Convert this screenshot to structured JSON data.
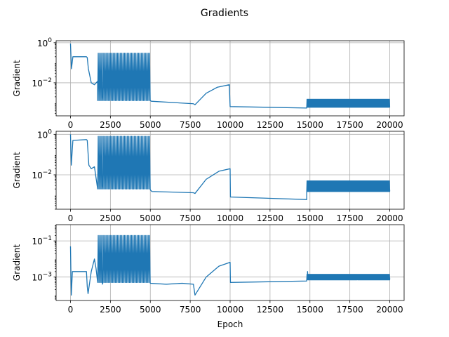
{
  "figure": {
    "suptitle": "Gradients"
  },
  "chart_data": [
    {
      "type": "line",
      "title": "",
      "xlabel": "",
      "ylabel": "Gradient",
      "yscale": "log",
      "xlim": [
        -900,
        20900
      ],
      "ylim_log10": [
        -3.65,
        0.1
      ],
      "xticks": [
        0,
        2500,
        5000,
        7500,
        10000,
        12500,
        15000,
        17500,
        20000
      ],
      "xtick_labels": [
        "0",
        "2500",
        "5000",
        "7500",
        "10000",
        "12500",
        "15000",
        "17500",
        "20000"
      ],
      "yticks_log10": [
        0,
        -2
      ],
      "ytick_labels": [
        "10^0",
        "10^-2"
      ],
      "grid": true,
      "color": "#1f77b4",
      "series": [
        {
          "baseline": [
            [
              0,
              0.9
            ],
            [
              60,
              0.05
            ],
            [
              150,
              0.2
            ],
            [
              1000,
              0.2
            ],
            [
              1050,
              0.18
            ],
            [
              1120,
              0.05
            ],
            [
              1300,
              0.01
            ],
            [
              1500,
              0.008
            ],
            [
              1700,
              0.012
            ],
            [
              2000,
              0.003
            ],
            [
              3000,
              0.0018
            ],
            [
              5000,
              0.0013
            ],
            [
              5060,
              0.0012
            ],
            [
              7700,
              0.0009
            ],
            [
              7800,
              0.0008
            ],
            [
              8500,
              0.003
            ],
            [
              9200,
              0.006
            ],
            [
              9950,
              0.008
            ],
            [
              10000,
              0.00065
            ],
            [
              14800,
              0.00055
            ],
            [
              14850,
              0.0009
            ],
            [
              16000,
              0.00075
            ],
            [
              18000,
              0.00065
            ],
            [
              20000,
              0.0006
            ]
          ],
          "oscillations": [
            {
              "from": 1700,
              "to": 5000,
              "count": 38,
              "low": 0.0013,
              "high": 0.3
            },
            {
              "from": 14800,
              "to": 20000,
              "count": 120,
              "low": 0.0006,
              "high": 0.0015
            }
          ]
        }
      ]
    },
    {
      "type": "line",
      "title": "",
      "xlabel": "",
      "ylabel": "Gradient",
      "yscale": "log",
      "xlim": [
        -900,
        20900
      ],
      "ylim_log10": [
        -3.7,
        0.15
      ],
      "xticks": [
        0,
        2500,
        5000,
        7500,
        10000,
        12500,
        15000,
        17500,
        20000
      ],
      "xtick_labels": [
        "0",
        "2500",
        "5000",
        "7500",
        "10000",
        "12500",
        "15000",
        "17500",
        "20000"
      ],
      "yticks_log10": [
        0,
        -2
      ],
      "ytick_labels": [
        "10^0",
        "10^-2"
      ],
      "grid": true,
      "color": "#1f77b4",
      "series": [
        {
          "baseline": [
            [
              0,
              1.0
            ],
            [
              50,
              0.03
            ],
            [
              150,
              0.5
            ],
            [
              1000,
              0.55
            ],
            [
              1050,
              0.5
            ],
            [
              1150,
              0.03
            ],
            [
              1300,
              0.02
            ],
            [
              1500,
              0.025
            ],
            [
              2000,
              0.004
            ],
            [
              3000,
              0.0025
            ],
            [
              5000,
              0.0018
            ],
            [
              5100,
              0.0015
            ],
            [
              7700,
              0.0013
            ],
            [
              7800,
              0.0012
            ],
            [
              8500,
              0.006
            ],
            [
              9300,
              0.015
            ],
            [
              10000,
              0.02
            ],
            [
              10020,
              0.0008
            ],
            [
              14800,
              0.0006
            ],
            [
              14850,
              0.004
            ],
            [
              16000,
              0.0025
            ],
            [
              18000,
              0.002
            ],
            [
              20000,
              0.0018
            ]
          ],
          "oscillations": [
            {
              "from": 1700,
              "to": 5000,
              "count": 38,
              "low": 0.002,
              "high": 0.8
            },
            {
              "from": 14800,
              "to": 20000,
              "count": 120,
              "low": 0.0015,
              "high": 0.005
            }
          ]
        }
      ]
    },
    {
      "type": "line",
      "title": "",
      "xlabel": "Epoch",
      "ylabel": "Gradient",
      "yscale": "log",
      "xlim": [
        -900,
        20900
      ],
      "ylim_log10": [
        -4.3,
        -0.1
      ],
      "xticks": [
        0,
        2500,
        5000,
        7500,
        10000,
        12500,
        15000,
        17500,
        20000
      ],
      "xtick_labels": [
        "0",
        "2500",
        "5000",
        "7500",
        "10000",
        "12500",
        "15000",
        "17500",
        "20000"
      ],
      "yticks_log10": [
        -1,
        -3
      ],
      "ytick_labels": [
        "10^-1",
        "10^-3"
      ],
      "grid": true,
      "color": "#1f77b4",
      "series": [
        {
          "baseline": [
            [
              0,
              0.05
            ],
            [
              50,
              0.0001
            ],
            [
              120,
              0.002
            ],
            [
              1000,
              0.002
            ],
            [
              1050,
              0.0003
            ],
            [
              1100,
              0.00012
            ],
            [
              1300,
              0.002
            ],
            [
              1500,
              0.01
            ],
            [
              1600,
              0.003
            ],
            [
              2000,
              0.0004
            ],
            [
              3000,
              0.0005
            ],
            [
              5000,
              0.00045
            ],
            [
              6000,
              0.0004
            ],
            [
              7000,
              0.00045
            ],
            [
              7700,
              0.0004
            ],
            [
              7800,
              0.0001
            ],
            [
              8500,
              0.001
            ],
            [
              9300,
              0.004
            ],
            [
              10000,
              0.0065
            ],
            [
              10020,
              0.0005
            ],
            [
              14800,
              0.0006
            ],
            [
              14850,
              0.002
            ],
            [
              16000,
              0.0012
            ],
            [
              18000,
              0.001
            ],
            [
              20000,
              0.0009
            ]
          ],
          "oscillations": [
            {
              "from": 1700,
              "to": 5000,
              "count": 38,
              "low": 0.0005,
              "high": 0.2
            },
            {
              "from": 14800,
              "to": 20000,
              "count": 120,
              "low": 0.0007,
              "high": 0.0014
            }
          ]
        }
      ]
    }
  ]
}
